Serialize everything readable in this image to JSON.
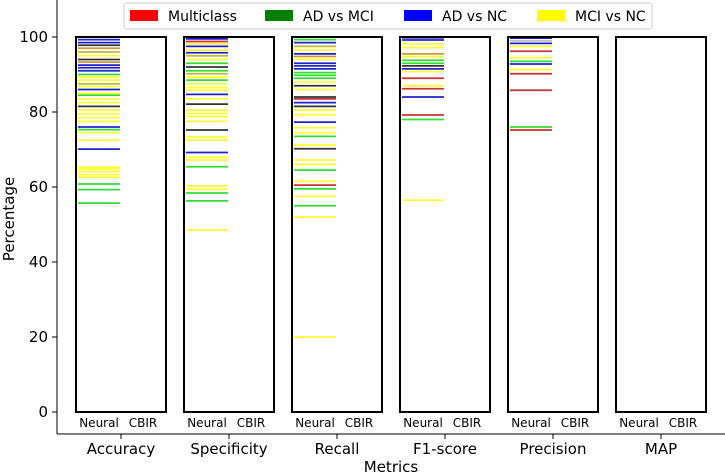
{
  "chart_data": {
    "type": "bar",
    "xlabel": "Metrics",
    "ylabel": "Percentage",
    "ylim": [
      0,
      110
    ],
    "yticks": [
      0,
      20,
      40,
      60,
      80,
      100
    ],
    "categories": [
      "Accuracy",
      "Specificity",
      "Recall",
      "F1-score",
      "Precision",
      "MAP"
    ],
    "sublabels": [
      "Neural",
      "CBIR"
    ],
    "legend": {
      "placement": "top-center",
      "entries": [
        {
          "label": "Multiclass",
          "color": "#ff0000"
        },
        {
          "label": "AD vs MCI",
          "color": "#008000"
        },
        {
          "label": "AD vs NC",
          "color": "#0000ff"
        },
        {
          "label": "MCI vs NC",
          "color": "#ffff00"
        }
      ]
    },
    "series": [
      {
        "category": "Accuracy",
        "entries": [
          {
            "v": 55.7,
            "c": "#33dd33"
          },
          {
            "v": 59.3,
            "c": "#33dd33"
          },
          {
            "v": 60.8,
            "c": "#33dd33"
          },
          {
            "v": 62.6,
            "c": "#ffff33"
          },
          {
            "v": 63.3,
            "c": "#ffff33"
          },
          {
            "v": 64.1,
            "c": "#ffff33"
          },
          {
            "v": 64.8,
            "c": "#ffff33"
          },
          {
            "v": 65.3,
            "c": "#ffff33"
          },
          {
            "v": 70.1,
            "c": "#2222cc"
          },
          {
            "v": 72.5,
            "c": "#ffff33"
          },
          {
            "v": 74.5,
            "c": "#ffff33"
          },
          {
            "v": 75.3,
            "c": "#33dd33"
          },
          {
            "v": 76.0,
            "c": "#2222cc"
          },
          {
            "v": 77.5,
            "c": "#ffff33"
          },
          {
            "v": 78.5,
            "c": "#ffff33"
          },
          {
            "v": 79.5,
            "c": "#ffff33"
          },
          {
            "v": 80.5,
            "c": "#ffff33"
          },
          {
            "v": 81.5,
            "c": "#333333"
          },
          {
            "v": 82.5,
            "c": "#ffff33"
          },
          {
            "v": 83.5,
            "c": "#ffff33"
          },
          {
            "v": 84.5,
            "c": "#33dd33"
          },
          {
            "v": 85.0,
            "c": "#ffff33"
          },
          {
            "v": 86.0,
            "c": "#2222cc"
          },
          {
            "v": 86.8,
            "c": "#ffff33"
          },
          {
            "v": 87.5,
            "c": "#bbbb33"
          },
          {
            "v": 88.5,
            "c": "#ffff33"
          },
          {
            "v": 89.3,
            "c": "#ffff33"
          },
          {
            "v": 90.0,
            "c": "#33dd33"
          },
          {
            "v": 91.0,
            "c": "#2222cc"
          },
          {
            "v": 91.8,
            "c": "#2222cc"
          },
          {
            "v": 92.5,
            "c": "#2222cc"
          },
          {
            "v": 93.3,
            "c": "#cc9933"
          },
          {
            "v": 94.0,
            "c": "#333333"
          },
          {
            "v": 95.0,
            "c": "#ffff33"
          },
          {
            "v": 96.0,
            "c": "#bbbb33"
          },
          {
            "v": 97.0,
            "c": "#cc9933"
          },
          {
            "v": 97.8,
            "c": "#333333"
          },
          {
            "v": 98.5,
            "c": "#2222cc"
          },
          {
            "v": 99.3,
            "c": "#2222cc"
          }
        ]
      },
      {
        "category": "Specificity",
        "entries": [
          {
            "v": 48.5,
            "c": "#ffff33"
          },
          {
            "v": 56.3,
            "c": "#33dd33"
          },
          {
            "v": 58.4,
            "c": "#33dd33"
          },
          {
            "v": 59.4,
            "c": "#ffff33"
          },
          {
            "v": 60.3,
            "c": "#ffff33"
          },
          {
            "v": 65.4,
            "c": "#33dd33"
          },
          {
            "v": 67.2,
            "c": "#ffff33"
          },
          {
            "v": 67.9,
            "c": "#ffff33"
          },
          {
            "v": 69.2,
            "c": "#2222cc"
          },
          {
            "v": 72.5,
            "c": "#ffff33"
          },
          {
            "v": 73.4,
            "c": "#ffff33"
          },
          {
            "v": 75.2,
            "c": "#333333"
          },
          {
            "v": 77.5,
            "c": "#ffff33"
          },
          {
            "v": 78.8,
            "c": "#ffff33"
          },
          {
            "v": 79.6,
            "c": "#ffff33"
          },
          {
            "v": 80.5,
            "c": "#ffff33"
          },
          {
            "v": 82.1,
            "c": "#333333"
          },
          {
            "v": 83.5,
            "c": "#ffff33"
          },
          {
            "v": 84.7,
            "c": "#2222cc"
          },
          {
            "v": 85.8,
            "c": "#ffff33"
          },
          {
            "v": 86.5,
            "c": "#ffff33"
          },
          {
            "v": 87.5,
            "c": "#ffff33"
          },
          {
            "v": 88.5,
            "c": "#33dd33"
          },
          {
            "v": 89.3,
            "c": "#ffff33"
          },
          {
            "v": 90.2,
            "c": "#bbbb33"
          },
          {
            "v": 91.0,
            "c": "#33dd33"
          },
          {
            "v": 92.0,
            "c": "#333333"
          },
          {
            "v": 93.0,
            "c": "#33dd33"
          },
          {
            "v": 94.0,
            "c": "#ffff33"
          },
          {
            "v": 95.0,
            "c": "#bbbb33"
          },
          {
            "v": 95.8,
            "c": "#2222cc"
          },
          {
            "v": 96.5,
            "c": "#ffff33"
          },
          {
            "v": 97.5,
            "c": "#2222cc"
          },
          {
            "v": 98.2,
            "c": "#ffff33"
          },
          {
            "v": 98.8,
            "c": "#cc3333"
          },
          {
            "v": 99.5,
            "c": "#2222cc"
          }
        ]
      },
      {
        "category": "Recall",
        "entries": [
          {
            "v": 20.0,
            "c": "#ffff33"
          },
          {
            "v": 52.0,
            "c": "#ffff33"
          },
          {
            "v": 55.0,
            "c": "#33dd33"
          },
          {
            "v": 57.5,
            "c": "#ffff33"
          },
          {
            "v": 59.5,
            "c": "#33dd33"
          },
          {
            "v": 60.5,
            "c": "#cc3333"
          },
          {
            "v": 61.5,
            "c": "#ffff33"
          },
          {
            "v": 64.5,
            "c": "#33dd33"
          },
          {
            "v": 66.0,
            "c": "#ffff33"
          },
          {
            "v": 67.2,
            "c": "#ffff33"
          },
          {
            "v": 70.2,
            "c": "#333333"
          },
          {
            "v": 71.2,
            "c": "#ffff33"
          },
          {
            "v": 73.5,
            "c": "#33dd33"
          },
          {
            "v": 74.5,
            "c": "#ffff33"
          },
          {
            "v": 75.8,
            "c": "#ffff33"
          },
          {
            "v": 77.3,
            "c": "#2222cc"
          },
          {
            "v": 79.3,
            "c": "#ffff33"
          },
          {
            "v": 80.5,
            "c": "#ffff33"
          },
          {
            "v": 81.5,
            "c": "#333333"
          },
          {
            "v": 82.5,
            "c": "#2222cc"
          },
          {
            "v": 83.5,
            "c": "#cc3333"
          },
          {
            "v": 84.0,
            "c": "#333333"
          },
          {
            "v": 86.0,
            "c": "#ffff33"
          },
          {
            "v": 87.0,
            "c": "#333333"
          },
          {
            "v": 88.0,
            "c": "#ffff33"
          },
          {
            "v": 89.0,
            "c": "#33dd33"
          },
          {
            "v": 89.8,
            "c": "#33dd33"
          },
          {
            "v": 90.5,
            "c": "#33dd33"
          },
          {
            "v": 91.5,
            "c": "#2222cc"
          },
          {
            "v": 92.3,
            "c": "#2222cc"
          },
          {
            "v": 93.0,
            "c": "#2222cc"
          },
          {
            "v": 94.0,
            "c": "#ffff33"
          },
          {
            "v": 94.8,
            "c": "#cc9933"
          },
          {
            "v": 95.5,
            "c": "#2222cc"
          },
          {
            "v": 96.5,
            "c": "#ffff33"
          },
          {
            "v": 97.5,
            "c": "#bbbb33"
          },
          {
            "v": 98.5,
            "c": "#2222cc"
          },
          {
            "v": 99.3,
            "c": "#33dd33"
          }
        ]
      },
      {
        "category": "F1-score",
        "entries": [
          {
            "v": 56.5,
            "c": "#ffff33"
          },
          {
            "v": 78.0,
            "c": "#33dd33"
          },
          {
            "v": 79.2,
            "c": "#cc3333"
          },
          {
            "v": 84.0,
            "c": "#2222cc"
          },
          {
            "v": 86.2,
            "c": "#cc3333"
          },
          {
            "v": 87.0,
            "c": "#ffff33"
          },
          {
            "v": 89.0,
            "c": "#cc3333"
          },
          {
            "v": 90.8,
            "c": "#ffff33"
          },
          {
            "v": 91.5,
            "c": "#2222cc"
          },
          {
            "v": 92.3,
            "c": "#333333"
          },
          {
            "v": 93.0,
            "c": "#33dd33"
          },
          {
            "v": 93.8,
            "c": "#33dd33"
          },
          {
            "v": 94.8,
            "c": "#ffff33"
          },
          {
            "v": 95.5,
            "c": "#cc9933"
          },
          {
            "v": 97.2,
            "c": "#ffff33"
          },
          {
            "v": 98.2,
            "c": "#ffff33"
          },
          {
            "v": 99.2,
            "c": "#2222cc"
          },
          {
            "v": 99.8,
            "c": "#2222cc"
          }
        ]
      },
      {
        "category": "Precision",
        "entries": [
          {
            "v": 75.2,
            "c": "#cc3333"
          },
          {
            "v": 76.0,
            "c": "#33dd33"
          },
          {
            "v": 85.8,
            "c": "#cc3333"
          },
          {
            "v": 90.2,
            "c": "#cc3333"
          },
          {
            "v": 91.3,
            "c": "#ffff33"
          },
          {
            "v": 92.8,
            "c": "#2222cc"
          },
          {
            "v": 93.5,
            "c": "#33dd33"
          },
          {
            "v": 94.5,
            "c": "#ffff33"
          },
          {
            "v": 96.2,
            "c": "#cc3333"
          },
          {
            "v": 97.5,
            "c": "#ffff33"
          },
          {
            "v": 98.3,
            "c": "#2222cc"
          },
          {
            "v": 99.0,
            "c": "#bbbbbb"
          },
          {
            "v": 99.7,
            "c": "#2222cc"
          }
        ]
      },
      {
        "category": "MAP",
        "entries": []
      }
    ]
  }
}
